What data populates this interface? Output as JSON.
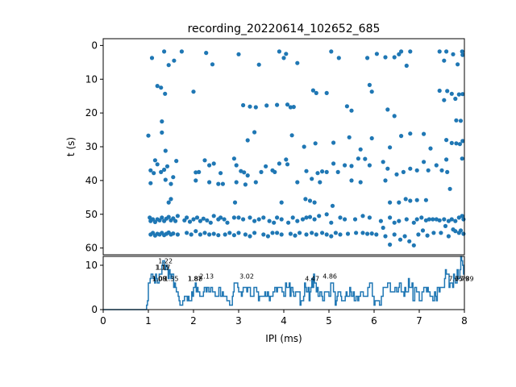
{
  "chart_data": [
    {
      "type": "scatter",
      "title": "recording_20220614_102652_685",
      "xlabel": "",
      "ylabel": "t (s)",
      "xlim": [
        0,
        8
      ],
      "ylim": [
        62,
        -2
      ],
      "y_inverted": true,
      "xticks": [],
      "yticks": [
        "0",
        "10",
        "20",
        "30",
        "40",
        "50",
        "60"
      ],
      "color": "#1f77b4",
      "points": [
        [
          1.08,
          3.7
        ],
        [
          1.35,
          1.8
        ],
        [
          1.45,
          5.8
        ],
        [
          1.57,
          4.5
        ],
        [
          1.74,
          1.8
        ],
        [
          2.28,
          2.2
        ],
        [
          2.42,
          5.6
        ],
        [
          3.0,
          2.6
        ],
        [
          3.45,
          5.7
        ],
        [
          3.9,
          1.8
        ],
        [
          4.0,
          3.7
        ],
        [
          4.05,
          2.5
        ],
        [
          4.3,
          5.2
        ],
        [
          5.05,
          1.8
        ],
        [
          5.22,
          3.7
        ],
        [
          5.85,
          3.7
        ],
        [
          6.06,
          2.5
        ],
        [
          6.25,
          3.5
        ],
        [
          6.45,
          3.5
        ],
        [
          6.55,
          2.6
        ],
        [
          6.72,
          6.0
        ],
        [
          6.8,
          1.8
        ],
        [
          7.45,
          1.8
        ],
        [
          7.6,
          1.8
        ],
        [
          7.75,
          2.6
        ],
        [
          7.85,
          5.6
        ],
        [
          7.95,
          1.8
        ],
        [
          7.96,
          2.8
        ],
        [
          7.55,
          4.5
        ],
        [
          6.6,
          1.8
        ],
        [
          1.2,
          12.0
        ],
        [
          1.28,
          12.5
        ],
        [
          1.37,
          14.3
        ],
        [
          2.0,
          13.7
        ],
        [
          4.65,
          13.3
        ],
        [
          4.72,
          14.1
        ],
        [
          4.95,
          14.1
        ],
        [
          5.9,
          11.7
        ],
        [
          5.95,
          13.7
        ],
        [
          7.45,
          13.4
        ],
        [
          7.62,
          13.5
        ],
        [
          7.72,
          14.3
        ],
        [
          7.8,
          15.8
        ],
        [
          7.88,
          14.5
        ],
        [
          7.96,
          14.4
        ],
        [
          1.3,
          22.5
        ],
        [
          3.1,
          17.7
        ],
        [
          3.25,
          18.1
        ],
        [
          3.38,
          18.3
        ],
        [
          3.62,
          17.8
        ],
        [
          3.85,
          17.6
        ],
        [
          4.08,
          17.5
        ],
        [
          4.15,
          18.3
        ],
        [
          4.22,
          18.2
        ],
        [
          5.4,
          18.0
        ],
        [
          5.5,
          19.3
        ],
        [
          6.3,
          19.0
        ],
        [
          6.45,
          20.9
        ],
        [
          7.55,
          16.2
        ],
        [
          7.82,
          22.2
        ],
        [
          7.92,
          22.3
        ],
        [
          1.0,
          26.7
        ],
        [
          1.3,
          25.8
        ],
        [
          1.38,
          31.2
        ],
        [
          3.2,
          28.1
        ],
        [
          3.35,
          25.7
        ],
        [
          4.18,
          26.6
        ],
        [
          4.45,
          30.0
        ],
        [
          4.7,
          29.0
        ],
        [
          5.1,
          28.8
        ],
        [
          5.45,
          27.2
        ],
        [
          5.7,
          30.8
        ],
        [
          5.95,
          27.5
        ],
        [
          6.35,
          30.2
        ],
        [
          6.6,
          26.8
        ],
        [
          6.8,
          26.1
        ],
        [
          7.1,
          26.2
        ],
        [
          7.25,
          30.5
        ],
        [
          7.6,
          28.0
        ],
        [
          7.72,
          28.9
        ],
        [
          7.82,
          29.0
        ],
        [
          7.9,
          29.2
        ],
        [
          7.96,
          28.3
        ],
        [
          1.15,
          34.0
        ],
        [
          1.2,
          35.2
        ],
        [
          1.05,
          37.0
        ],
        [
          1.12,
          37.8
        ],
        [
          1.28,
          37.5
        ],
        [
          1.35,
          36.8
        ],
        [
          1.42,
          35.8
        ],
        [
          1.55,
          39.0
        ],
        [
          1.62,
          34.2
        ],
        [
          2.05,
          37.6
        ],
        [
          2.12,
          37.5
        ],
        [
          2.25,
          34.0
        ],
        [
          2.35,
          35.5
        ],
        [
          2.45,
          35.0
        ],
        [
          2.6,
          37.8
        ],
        [
          2.9,
          33.5
        ],
        [
          2.95,
          35.5
        ],
        [
          3.05,
          37.2
        ],
        [
          3.12,
          37.6
        ],
        [
          3.2,
          38.5
        ],
        [
          3.5,
          37.5
        ],
        [
          3.6,
          35.8
        ],
        [
          3.75,
          37.0
        ],
        [
          3.8,
          37.5
        ],
        [
          3.9,
          35.0
        ],
        [
          4.05,
          33.8
        ],
        [
          4.08,
          35.2
        ],
        [
          4.5,
          37.2
        ],
        [
          4.62,
          39.5
        ],
        [
          4.75,
          37.8
        ],
        [
          4.85,
          37.3
        ],
        [
          4.95,
          37.5
        ],
        [
          5.1,
          35.0
        ],
        [
          5.2,
          37.5
        ],
        [
          5.35,
          35.5
        ],
        [
          5.5,
          35.7
        ],
        [
          5.65,
          33.5
        ],
        [
          5.8,
          33.6
        ],
        [
          5.9,
          35.5
        ],
        [
          6.2,
          34.5
        ],
        [
          6.3,
          36.5
        ],
        [
          6.5,
          38.2
        ],
        [
          6.65,
          37.5
        ],
        [
          6.8,
          36.5
        ],
        [
          6.95,
          37.0
        ],
        [
          7.1,
          34.5
        ],
        [
          7.2,
          37.0
        ],
        [
          7.38,
          35.5
        ],
        [
          7.5,
          37.0
        ],
        [
          7.6,
          33.8
        ],
        [
          7.62,
          37.5
        ],
        [
          7.95,
          33.5
        ],
        [
          1.05,
          40.8
        ],
        [
          1.38,
          39.8
        ],
        [
          1.5,
          41.0
        ],
        [
          1.45,
          46.5
        ],
        [
          1.5,
          45.5
        ],
        [
          2.05,
          40.0
        ],
        [
          2.35,
          40.5
        ],
        [
          2.55,
          41.0
        ],
        [
          2.65,
          41.0
        ],
        [
          2.95,
          40.5
        ],
        [
          3.15,
          41.2
        ],
        [
          3.38,
          40.5
        ],
        [
          2.92,
          46.5
        ],
        [
          4.3,
          40.5
        ],
        [
          3.95,
          46.5
        ],
        [
          4.48,
          45.5
        ],
        [
          4.58,
          46.0
        ],
        [
          4.68,
          46.5
        ],
        [
          4.8,
          40.5
        ],
        [
          5.08,
          47.5
        ],
        [
          5.5,
          40.0
        ],
        [
          5.7,
          40.5
        ],
        [
          6.25,
          40.0
        ],
        [
          6.35,
          46.5
        ],
        [
          6.55,
          46.5
        ],
        [
          6.7,
          45.5
        ],
        [
          6.8,
          46.0
        ],
        [
          6.95,
          45.8
        ],
        [
          7.15,
          45.8
        ],
        [
          7.68,
          42.5
        ],
        [
          1.03,
          51.0
        ],
        [
          1.05,
          52.0
        ],
        [
          1.1,
          51.5
        ],
        [
          1.15,
          52.3
        ],
        [
          1.2,
          51.5
        ],
        [
          1.25,
          51.8
        ],
        [
          1.3,
          51.0
        ],
        [
          1.35,
          52.0
        ],
        [
          1.4,
          51.3
        ],
        [
          1.45,
          50.8
        ],
        [
          1.5,
          51.8
        ],
        [
          1.55,
          51.2
        ],
        [
          1.6,
          52.0
        ],
        [
          1.65,
          50.5
        ],
        [
          1.8,
          51.8
        ],
        [
          1.85,
          51.0
        ],
        [
          1.92,
          52.2
        ],
        [
          2.0,
          51.5
        ],
        [
          2.08,
          51.0
        ],
        [
          2.15,
          52.0
        ],
        [
          2.22,
          51.3
        ],
        [
          2.3,
          51.8
        ],
        [
          2.38,
          52.5
        ],
        [
          2.45,
          50.5
        ],
        [
          2.55,
          51.5
        ],
        [
          2.6,
          51.0
        ],
        [
          2.68,
          51.5
        ],
        [
          2.75,
          52.5
        ],
        [
          2.9,
          51.0
        ],
        [
          3.0,
          51.0
        ],
        [
          3.1,
          51.5
        ],
        [
          3.25,
          51.0
        ],
        [
          3.35,
          52.0
        ],
        [
          3.45,
          51.5
        ],
        [
          3.55,
          51.0
        ],
        [
          3.68,
          52.0
        ],
        [
          3.78,
          52.5
        ],
        [
          3.85,
          51.0
        ],
        [
          3.95,
          51.5
        ],
        [
          4.1,
          52.5
        ],
        [
          4.2,
          51.0
        ],
        [
          4.3,
          52.0
        ],
        [
          4.42,
          51.5
        ],
        [
          4.5,
          51.0
        ],
        [
          4.58,
          50.8
        ],
        [
          4.68,
          51.5
        ],
        [
          4.78,
          50.5
        ],
        [
          4.95,
          50.0
        ],
        [
          5.05,
          52.5
        ],
        [
          5.25,
          51.0
        ],
        [
          5.35,
          51.5
        ],
        [
          5.58,
          51.5
        ],
        [
          5.75,
          50.5
        ],
        [
          5.9,
          51.0
        ],
        [
          6.15,
          52.0
        ],
        [
          6.35,
          51.0
        ],
        [
          6.45,
          52.5
        ],
        [
          6.55,
          52.0
        ],
        [
          6.72,
          51.5
        ],
        [
          6.88,
          52.5
        ],
        [
          6.95,
          51.5
        ],
        [
          7.05,
          51.0
        ],
        [
          7.15,
          51.8
        ],
        [
          7.22,
          51.5
        ],
        [
          7.3,
          51.5
        ],
        [
          7.38,
          51.5
        ],
        [
          7.45,
          51.8
        ],
        [
          7.55,
          51.5
        ],
        [
          7.65,
          52.0
        ],
        [
          7.72,
          51.5
        ],
        [
          7.8,
          52.0
        ],
        [
          7.88,
          51.0
        ],
        [
          7.95,
          50.5
        ],
        [
          7.98,
          51.5
        ],
        [
          1.05,
          56.0
        ],
        [
          1.1,
          55.5
        ],
        [
          1.15,
          56.3
        ],
        [
          1.2,
          55.8
        ],
        [
          1.25,
          56.0
        ],
        [
          1.3,
          55.5
        ],
        [
          1.35,
          56.2
        ],
        [
          1.4,
          55.8
        ],
        [
          1.45,
          55.4
        ],
        [
          1.5,
          56.0
        ],
        [
          1.55,
          55.7
        ],
        [
          1.65,
          56.0
        ],
        [
          1.85,
          55.5
        ],
        [
          1.95,
          56.0
        ],
        [
          2.05,
          55.0
        ],
        [
          2.15,
          56.0
        ],
        [
          2.25,
          55.5
        ],
        [
          2.35,
          56.0
        ],
        [
          2.45,
          55.8
        ],
        [
          2.55,
          56.2
        ],
        [
          2.7,
          56.0
        ],
        [
          2.8,
          55.5
        ],
        [
          2.9,
          56.2
        ],
        [
          3.0,
          55.5
        ],
        [
          3.15,
          56.0
        ],
        [
          3.25,
          56.5
        ],
        [
          3.35,
          55.5
        ],
        [
          3.55,
          56.0
        ],
        [
          3.65,
          56.5
        ],
        [
          3.75,
          55.5
        ],
        [
          3.85,
          55.5
        ],
        [
          3.95,
          56.0
        ],
        [
          4.15,
          55.8
        ],
        [
          4.25,
          56.3
        ],
        [
          4.35,
          55.5
        ],
        [
          4.5,
          56.0
        ],
        [
          4.62,
          55.5
        ],
        [
          4.72,
          56.0
        ],
        [
          4.85,
          55.5
        ],
        [
          4.95,
          56.0
        ],
        [
          5.05,
          56.5
        ],
        [
          5.15,
          55.5
        ],
        [
          5.25,
          56.0
        ],
        [
          5.42,
          55.8
        ],
        [
          5.6,
          55.5
        ],
        [
          5.75,
          55.5
        ],
        [
          5.95,
          55.7
        ],
        [
          6.05,
          56.0
        ],
        [
          6.25,
          56.5
        ],
        [
          6.35,
          59.0
        ],
        [
          6.45,
          56.0
        ],
        [
          6.58,
          57.5
        ],
        [
          6.68,
          56.5
        ],
        [
          6.78,
          58.0
        ],
        [
          6.88,
          59.2
        ],
        [
          6.98,
          56.0
        ],
        [
          7.08,
          54.8
        ],
        [
          7.18,
          56.3
        ],
        [
          7.32,
          55.5
        ],
        [
          7.48,
          55.5
        ],
        [
          7.65,
          56.5
        ],
        [
          7.8,
          55.0
        ],
        [
          7.88,
          55.5
        ],
        [
          7.98,
          55.8
        ],
        [
          7.58,
          53.5
        ],
        [
          7.75,
          54.5
        ],
        [
          7.92,
          54.8
        ],
        [
          6.2,
          54.0
        ],
        [
          5.85,
          55.8
        ]
      ]
    },
    {
      "type": "line",
      "xlabel": "IPI (ms)",
      "ylabel": "",
      "xlim": [
        0,
        8
      ],
      "ylim": [
        0,
        12
      ],
      "xticks": [
        "0",
        "1",
        "2",
        "3",
        "4",
        "5",
        "6",
        "7",
        "8"
      ],
      "yticks": [
        "0",
        "10"
      ],
      "color": "#1f77b4",
      "annotations": [
        {
          "x": 1.08,
          "y": 6.5,
          "label": "1.08"
        },
        {
          "x": 1.09,
          "y": 6.5,
          "label": "1.09"
        },
        {
          "x": 1.15,
          "y": 9.0,
          "label": "1.15"
        },
        {
          "x": 1.17,
          "y": 9.0,
          "label": "1.17"
        },
        {
          "x": 1.22,
          "y": 10.5,
          "label": "1.22"
        },
        {
          "x": 1.35,
          "y": 6.5,
          "label": "1.35"
        },
        {
          "x": 1.87,
          "y": 6.5,
          "label": "1.87"
        },
        {
          "x": 1.88,
          "y": 6.5,
          "label": "1.88"
        },
        {
          "x": 2.13,
          "y": 7.0,
          "label": "2.13"
        },
        {
          "x": 3.02,
          "y": 7.0,
          "label": "3.02"
        },
        {
          "x": 4.47,
          "y": 6.5,
          "label": "4.47"
        },
        {
          "x": 4.86,
          "y": 7.0,
          "label": "4.86"
        },
        {
          "x": 7.65,
          "y": 6.5,
          "label": "7.65"
        },
        {
          "x": 7.79,
          "y": 6.5,
          "label": "7.79"
        },
        {
          "x": 7.89,
          "y": 6.5,
          "label": "7.89"
        }
      ]
    }
  ]
}
